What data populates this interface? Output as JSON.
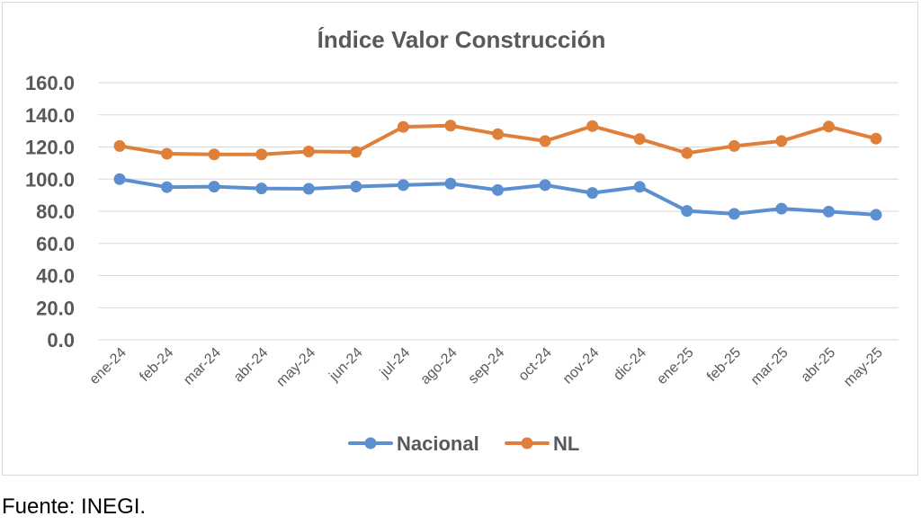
{
  "chart_data": {
    "type": "line",
    "title": "Índice  Valor Construcción",
    "xlabel": "",
    "ylabel": "",
    "categories": [
      "ene-24",
      "feb-24",
      "mar-24",
      "abr-24",
      "may-24",
      "jun-24",
      "jul-24",
      "ago-24",
      "sep-24",
      "oct-24",
      "nov-24",
      "dic-24",
      "ene-25",
      "feb-25",
      "mar-25",
      "abr-25",
      "may-25"
    ],
    "yticks": [
      "0.0",
      "20.0",
      "40.0",
      "60.0",
      "80.0",
      "100.0",
      "120.0",
      "140.0",
      "160.0"
    ],
    "ylim": [
      0,
      160
    ],
    "grid": true,
    "legend_position": "bottom",
    "series": [
      {
        "name": "Nacional",
        "color": "#5b8fd0",
        "values": [
          100.0,
          95.0,
          95.3,
          94.2,
          94.0,
          95.4,
          96.3,
          97.2,
          93.2,
          96.3,
          91.4,
          95.2,
          80.2,
          78.4,
          81.6,
          79.8,
          77.8
        ]
      },
      {
        "name": "NL",
        "color": "#e07f3a",
        "values": [
          120.6,
          115.8,
          115.4,
          115.4,
          117.2,
          116.9,
          132.5,
          133.3,
          128.0,
          123.7,
          133.0,
          125.0,
          116.2,
          120.6,
          123.7,
          132.7,
          125.2
        ]
      }
    ]
  },
  "source": "Fuente: INEGI."
}
